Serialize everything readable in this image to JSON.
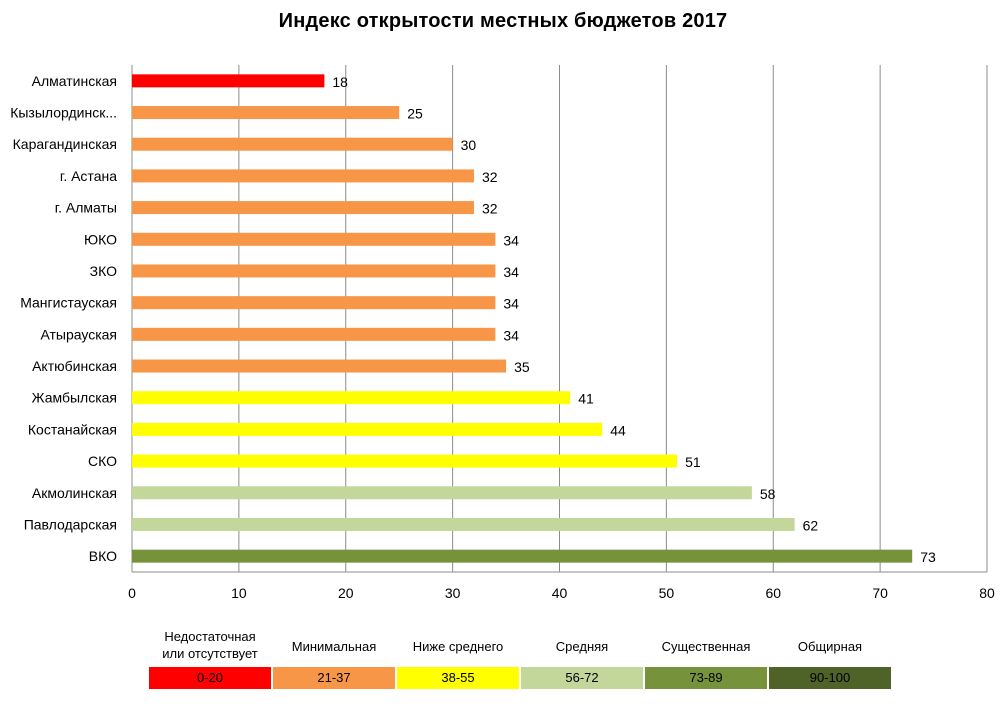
{
  "chart_data": {
    "type": "bar",
    "orientation": "horizontal",
    "title": "Индекс открытости местных бюджетов 2017",
    "categories": [
      "Алматинская",
      "Кызылординск...",
      "Карагандинская",
      "г. Астана",
      "г. Алматы",
      "ЮКО",
      "ЗКО",
      "Мангистауская",
      "Атырауская",
      "Актюбинская",
      "Жамбылская",
      "Костанайская",
      "СКО",
      "Акмолинская",
      "Павлодарская",
      "ВКО"
    ],
    "values": [
      18,
      25,
      30,
      32,
      32,
      34,
      34,
      34,
      34,
      35,
      41,
      44,
      51,
      58,
      62,
      73
    ],
    "xlim": [
      0,
      80
    ],
    "xticks": [
      "0",
      "10",
      "20",
      "30",
      "40",
      "50",
      "60",
      "70",
      "80"
    ],
    "grid": true,
    "data_labels": true,
    "legend_position": "bottom",
    "legend": [
      {
        "label": "Недостаточная\nили отсутствует",
        "range": "0-20",
        "min": 0,
        "max": 20,
        "color": "#ff0000"
      },
      {
        "label": "Минимальная",
        "range": "21-37",
        "min": 21,
        "max": 37,
        "color": "#f79646"
      },
      {
        "label": "Ниже среднего",
        "range": "38-55",
        "min": 38,
        "max": 55,
        "color": "#ffff00"
      },
      {
        "label": "Средняя",
        "range": "56-72",
        "min": 56,
        "max": 72,
        "color": "#c4d79b"
      },
      {
        "label": "Существенная",
        "range": "73-89",
        "min": 73,
        "max": 89,
        "color": "#76933c"
      },
      {
        "label": "Общирная",
        "range": "90-100",
        "min": 90,
        "max": 100,
        "color": "#4f6228"
      }
    ]
  }
}
